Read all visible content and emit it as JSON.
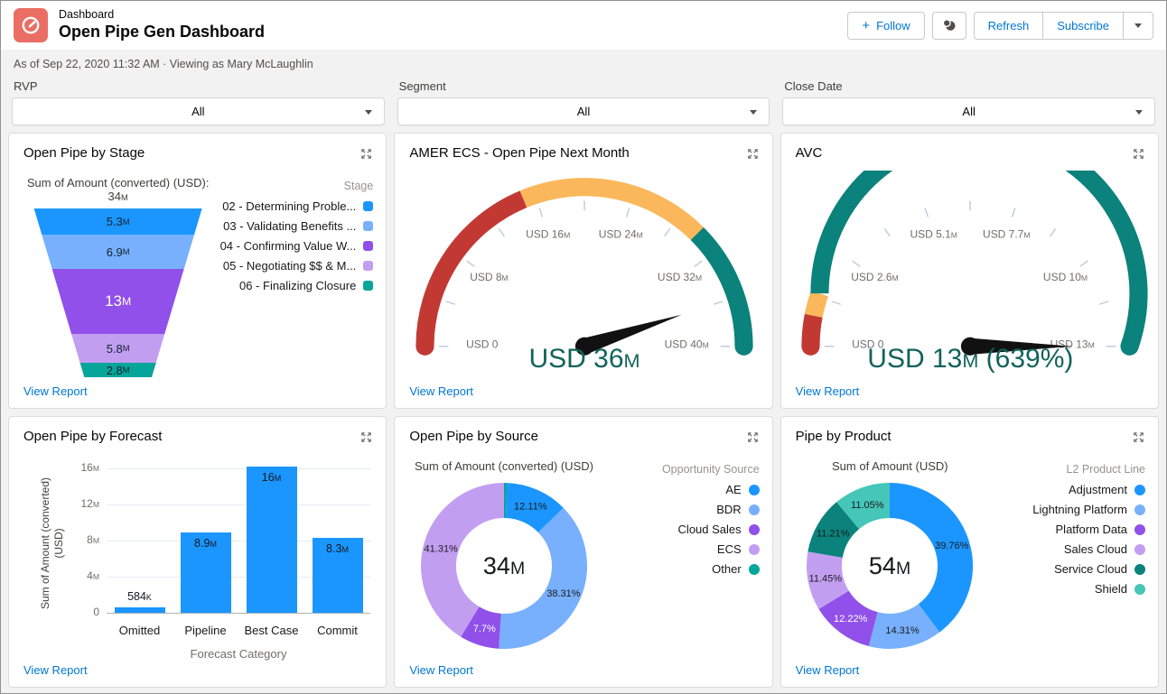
{
  "ui": {
    "view_report_label": "View Report"
  },
  "header": {
    "app_label": "Dashboard",
    "title": "Open Pipe Gen Dashboard",
    "meta": "As of Sep 22, 2020 11:32 AM · Viewing as Mary McLaughlin",
    "buttons": {
      "follow": "Follow",
      "refresh": "Refresh",
      "subscribe": "Subscribe"
    }
  },
  "filters": [
    {
      "label": "RVP",
      "value": "All"
    },
    {
      "label": "Segment",
      "value": "All"
    },
    {
      "label": "Close Date",
      "value": "All"
    }
  ],
  "colors": {
    "link": "#0176D3",
    "header_icon": "#EA6E64",
    "bar": "#1B96FF",
    "gauge_value_text": "#11635B",
    "gauge_red": "#C23934",
    "gauge_orange": "#FAB75B",
    "gauge_green": "#0B827C"
  },
  "chart_data": [
    {
      "type": "funnel",
      "card_title": "Open Pipe by Stage",
      "title": "Sum of Amount (converted) (USD): 34M",
      "legend_title": "Stage",
      "legend_position": "right",
      "segments": [
        {
          "label": "02 - Determining Proble...",
          "value": 5.3,
          "value_label": "5.3M",
          "color": "#1B96FF"
        },
        {
          "label": "03 - Validating Benefits ...",
          "value": 6.9,
          "value_label": "6.9M",
          "color": "#78B0FD"
        },
        {
          "label": "04 - Confirming Value W...",
          "value": 13,
          "value_label": "13M",
          "color": "#9050E9",
          "text_color": "#FFFFFF",
          "emphasized": true
        },
        {
          "label": "05 - Negotiating $$ & M...",
          "value": 5.8,
          "value_label": "5.8M",
          "color": "#C29EF1"
        },
        {
          "label": "06 - Finalizing Closure",
          "value": 2.8,
          "value_label": "2.8M",
          "color": "#06A59A"
        }
      ],
      "unit": "M USD"
    },
    {
      "type": "gauge",
      "card_title": "AMER ECS - Open Pipe Next Month",
      "min": 0,
      "max": 40,
      "unit": "USD M",
      "tick_labels": [
        "USD 0",
        "USD 8M",
        "USD 16M",
        "USD 24M",
        "USD 32M",
        "USD 40M"
      ],
      "bands": [
        {
          "from": 0,
          "to": 15,
          "color": "#C23934"
        },
        {
          "from": 15,
          "to": 30,
          "color": "#FAB75B"
        },
        {
          "from": 30,
          "to": 40,
          "color": "#0B827C"
        }
      ],
      "value": 36,
      "value_label": "USD 36M"
    },
    {
      "type": "gauge",
      "card_title": "AVC",
      "min": 0,
      "max": 13,
      "unit": "USD M",
      "tick_labels": [
        "USD 0",
        "USD 2.6M",
        "USD 5.1M",
        "USD 7.7M",
        "USD 10M",
        "USD 13M"
      ],
      "bands": [
        {
          "from": 0,
          "to": 0.8,
          "color": "#C23934"
        },
        {
          "from": 0.8,
          "to": 1.4,
          "color": "#FAB75B"
        },
        {
          "from": 1.4,
          "to": 13,
          "color": "#0B827C"
        }
      ],
      "value": 13,
      "value_label": "USD 13M (639%)"
    },
    {
      "type": "bar",
      "card_title": "Open Pipe by Forecast",
      "categories": [
        "Omitted",
        "Pipeline",
        "Best Case",
        "Commit"
      ],
      "values": [
        0.584,
        8.9,
        16.2,
        8.3
      ],
      "value_labels": [
        "584K",
        "8.9M",
        "16M",
        "8.3M"
      ],
      "bar_color": "#1B96FF",
      "xlabel": "Forecast Category",
      "ylabel": "Sum of Amount (converted) (USD)",
      "yticks": [
        16,
        12,
        8,
        4,
        0
      ],
      "ytick_labels": [
        "16M",
        "12M",
        "8M",
        "4M",
        "0"
      ],
      "ylim": [
        0,
        16.8
      ],
      "grid": true
    },
    {
      "type": "donut",
      "card_title": "Open Pipe by Source",
      "title": "Sum of Amount (converted) (USD)",
      "center_label": "34M",
      "legend_title": "Opportunity Source",
      "legend_position": "right",
      "legend": [
        {
          "label": "AE",
          "color": "#1B96FF"
        },
        {
          "label": "BDR",
          "color": "#78B0FD"
        },
        {
          "label": "Cloud Sales",
          "color": "#9050E9"
        },
        {
          "label": "ECS",
          "color": "#C29EF1"
        },
        {
          "label": "Other",
          "color": "#06A59A"
        }
      ],
      "segments": [
        {
          "label": "Other",
          "pct": 0.57,
          "color": "#06A59A",
          "pct_label": ""
        },
        {
          "label": "AE",
          "pct": 12.11,
          "color": "#1B96FF",
          "pct_label": "12.11%"
        },
        {
          "label": "BDR",
          "pct": 38.31,
          "color": "#78B0FD",
          "pct_label": "38.31%"
        },
        {
          "label": "Cloud Sales",
          "pct": 7.7,
          "color": "#9050E9",
          "pct_label": "7.7%",
          "label_color": "#FFFFFF"
        },
        {
          "label": "ECS",
          "pct": 41.31,
          "color": "#C29EF1",
          "pct_label": "41.31%"
        }
      ]
    },
    {
      "type": "donut",
      "card_title": "Pipe by Product",
      "title": "Sum of Amount (USD)",
      "center_label": "54M",
      "legend_title": "L2 Product Line",
      "legend_position": "right",
      "legend": [
        {
          "label": "Adjustment",
          "color": "#1B96FF"
        },
        {
          "label": "Lightning Platform",
          "color": "#78B0FD"
        },
        {
          "label": "Platform Data",
          "color": "#9050E9"
        },
        {
          "label": "Sales Cloud",
          "color": "#C29EF1"
        },
        {
          "label": "Service Cloud",
          "color": "#0B827C"
        },
        {
          "label": "Shield",
          "color": "#45C6B8"
        }
      ],
      "segments": [
        {
          "label": "Adjustment",
          "pct": 39.76,
          "color": "#1B96FF",
          "pct_label": "39.76%"
        },
        {
          "label": "Lightning Platform",
          "pct": 14.31,
          "color": "#78B0FD",
          "pct_label": "14.31%"
        },
        {
          "label": "Platform Data",
          "pct": 12.22,
          "color": "#9050E9",
          "pct_label": "12.22%",
          "label_color": "#FFFFFF"
        },
        {
          "label": "Sales Cloud",
          "pct": 11.45,
          "color": "#C29EF1",
          "pct_label": "11.45%"
        },
        {
          "label": "Service Cloud",
          "pct": 11.21,
          "color": "#0B827C",
          "pct_label": "11.21%"
        },
        {
          "label": "Shield",
          "pct": 11.05,
          "color": "#45C6B8",
          "pct_label": "11.05%"
        }
      ]
    }
  ]
}
